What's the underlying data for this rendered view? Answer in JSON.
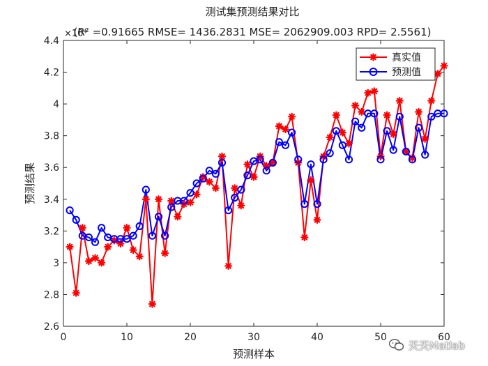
{
  "chart_data": {
    "type": "line",
    "title": "测试集预测结果对比",
    "subtitle": "(R² =0.91665 RMSE= 1436.2831 MSE= 2062909.003 RPD= 2.5561)",
    "xlabel": "预测样本",
    "ylabel": "预测结果",
    "y_exponent_label": "×10⁴",
    "xlim": [
      0,
      60
    ],
    "ylim": [
      2.6,
      4.4
    ],
    "xticks": [
      "0",
      "10",
      "20",
      "30",
      "40",
      "50",
      "60"
    ],
    "yticks": [
      "2.6",
      "2.8",
      "3",
      "3.2",
      "3.4",
      "3.6",
      "3.8",
      "4",
      "4.2",
      "4.4"
    ],
    "legend_position": "top-right",
    "grid": false,
    "x": [
      1,
      2,
      3,
      4,
      5,
      6,
      7,
      8,
      9,
      10,
      11,
      12,
      13,
      14,
      15,
      16,
      17,
      18,
      19,
      20,
      21,
      22,
      23,
      24,
      25,
      26,
      27,
      28,
      29,
      30,
      31,
      32,
      33,
      34,
      35,
      36,
      37,
      38,
      39,
      40,
      41,
      42,
      43,
      44,
      45,
      46,
      47,
      48,
      49,
      50,
      51,
      52,
      53,
      54,
      55,
      56,
      57,
      58,
      59,
      60
    ],
    "series": [
      {
        "name": "真实值",
        "color": "#ff0000",
        "marker": "asterisk",
        "values": [
          3.1,
          2.81,
          3.22,
          3.01,
          3.03,
          3.0,
          3.1,
          3.14,
          3.12,
          3.22,
          3.08,
          3.04,
          3.4,
          2.74,
          3.4,
          3.06,
          3.39,
          3.29,
          3.37,
          3.38,
          3.43,
          3.54,
          3.51,
          3.47,
          3.67,
          2.98,
          3.47,
          3.36,
          3.62,
          3.54,
          3.67,
          3.61,
          3.63,
          3.86,
          3.84,
          3.92,
          3.63,
          3.16,
          3.52,
          3.27,
          3.67,
          3.79,
          3.93,
          3.82,
          3.75,
          3.99,
          3.95,
          4.07,
          4.08,
          3.67,
          3.93,
          3.81,
          4.02,
          3.7,
          3.66,
          3.95,
          3.78,
          4.02,
          4.19,
          4.24
        ]
      },
      {
        "name": "预测值",
        "color": "#0000ff",
        "marker": "circle",
        "values": [
          3.33,
          3.27,
          3.17,
          3.16,
          3.13,
          3.22,
          3.16,
          3.15,
          3.15,
          3.15,
          3.17,
          3.23,
          3.46,
          3.17,
          3.29,
          3.17,
          3.35,
          3.39,
          3.39,
          3.44,
          3.5,
          3.53,
          3.58,
          3.56,
          3.63,
          3.33,
          3.41,
          3.46,
          3.55,
          3.64,
          3.65,
          3.58,
          3.63,
          3.76,
          3.74,
          3.82,
          3.65,
          3.37,
          3.62,
          3.37,
          3.65,
          3.69,
          3.83,
          3.74,
          3.65,
          3.89,
          3.85,
          3.94,
          3.94,
          3.65,
          3.83,
          3.71,
          3.92,
          3.7,
          3.65,
          3.85,
          3.68,
          3.92,
          3.94,
          3.94
        ]
      }
    ]
  },
  "watermark": {
    "icon": "wechat-icon",
    "text": "天天Matlab"
  }
}
